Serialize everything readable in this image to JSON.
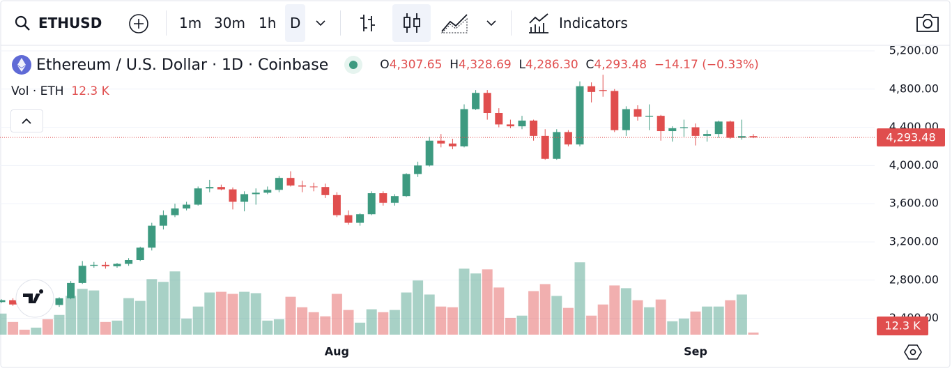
{
  "toolbar": {
    "symbol": "ETHUSD",
    "intervals": [
      "1m",
      "30m",
      "1h",
      "D"
    ],
    "indicators": "Indicators"
  },
  "legend": {
    "title": "Ethereum / U.S. Dollar · 1D · Coinbase",
    "ohlc": [
      {
        "label": "O",
        "value": "4,307.65"
      },
      {
        "label": "H",
        "value": "4,328.69"
      },
      {
        "label": "L",
        "value": "4,286.30"
      },
      {
        "label": "C",
        "value": "4,293.48"
      }
    ],
    "change": "−14.17 (−0.33%)",
    "volume_title": "Vol · ETH"
  },
  "chart_data": {
    "type": "candlestick",
    "categories": [
      null,
      null,
      null,
      null,
      null,
      null,
      null,
      null,
      null,
      null,
      null,
      null,
      null,
      null,
      null,
      null,
      null,
      null,
      null,
      null,
      null,
      null,
      null,
      null,
      null,
      null,
      null,
      null,
      null,
      "Aug",
      null,
      null,
      null,
      null,
      null,
      null,
      null,
      null,
      null,
      null,
      null,
      null,
      null,
      null,
      null,
      null,
      null,
      null,
      null,
      null,
      null,
      null,
      null,
      null,
      null,
      null,
      null,
      null,
      null,
      null,
      "Sep",
      null,
      null,
      null,
      null,
      null
    ],
    "open": [
      2570,
      2590,
      2545,
      2520,
      2550,
      2540,
      2610,
      2770,
      2950,
      2960,
      2945,
      2970,
      3010,
      3140,
      3370,
      3480,
      3550,
      3590,
      3760,
      3775,
      3750,
      3620,
      3700,
      3715,
      3745,
      3870,
      3790,
      3780,
      3775,
      3690,
      3480,
      3400,
      3490,
      3710,
      3610,
      3680,
      3910,
      4000,
      4260,
      4230,
      4200,
      4590,
      4760,
      4550,
      4430,
      4410,
      4470,
      4310,
      4070,
      4350,
      4220,
      4830,
      4790,
      4780,
      4370,
      4590,
      4510,
      4520,
      4360,
      4390,
      4400,
      4310,
      4330,
      4460,
      4290,
      4307.65
    ],
    "high": [
      2600,
      2610,
      2570,
      2560,
      2580,
      2620,
      2790,
      3000,
      2990,
      2990,
      2980,
      3030,
      3150,
      3400,
      3530,
      3600,
      3620,
      3780,
      3850,
      3800,
      3770,
      3730,
      3760,
      3780,
      3890,
      3940,
      3840,
      3820,
      3810,
      3720,
      3530,
      3500,
      3730,
      3730,
      3700,
      3920,
      4040,
      4300,
      4330,
      4280,
      4640,
      4790,
      4790,
      4600,
      4480,
      4520,
      4480,
      4380,
      4380,
      4370,
      4880,
      4870,
      4950,
      4800,
      4620,
      4630,
      4640,
      4530,
      4410,
      4480,
      4440,
      4370,
      4470,
      4470,
      4480,
      4328.69
    ],
    "low": [
      2560,
      2530,
      2500,
      2500,
      2520,
      2520,
      2600,
      2760,
      2930,
      2920,
      2930,
      2950,
      3000,
      3110,
      3330,
      3460,
      3530,
      3580,
      3720,
      3740,
      3540,
      3520,
      3590,
      3700,
      3720,
      3780,
      3720,
      3730,
      3660,
      3460,
      3380,
      3370,
      3480,
      3580,
      3580,
      3670,
      3880,
      3990,
      4190,
      4170,
      4190,
      4580,
      4480,
      4400,
      4390,
      4380,
      4260,
      4060,
      4060,
      4200,
      4200,
      4660,
      4720,
      4350,
      4310,
      4470,
      4370,
      4260,
      4250,
      4300,
      4210,
      4250,
      4290,
      4280,
      4270,
      4286.3
    ],
    "close": [
      2590,
      2545,
      2520,
      2550,
      2540,
      2610,
      2770,
      2950,
      2960,
      2945,
      2970,
      3010,
      3140,
      3370,
      3480,
      3550,
      3590,
      3760,
      3775,
      3750,
      3620,
      3700,
      3715,
      3745,
      3870,
      3790,
      3780,
      3775,
      3690,
      3480,
      3400,
      3490,
      3710,
      3610,
      3680,
      3910,
      4000,
      4260,
      4230,
      4200,
      4590,
      4760,
      4550,
      4430,
      4410,
      4470,
      4310,
      4070,
      4350,
      4220,
      4830,
      4770,
      4780,
      4370,
      4590,
      4510,
      4520,
      4360,
      4390,
      4400,
      4310,
      4330,
      4460,
      4290,
      4307.65,
      4293.48
    ],
    "volume": [
      123,
      74,
      29,
      41,
      90,
      115,
      226,
      267,
      258,
      74,
      82,
      213,
      197,
      324,
      308,
      369,
      94,
      164,
      246,
      250,
      238,
      250,
      242,
      82,
      90,
      221,
      160,
      131,
      107,
      238,
      144,
      70,
      148,
      131,
      144,
      246,
      316,
      234,
      164,
      160,
      385,
      357,
      381,
      275,
      98,
      111,
      254,
      295,
      226,
      156,
      422,
      111,
      176,
      287,
      271,
      201,
      160,
      205,
      78,
      94,
      135,
      164,
      164,
      201,
      234,
      12.3
    ],
    "last_price_label": "4,293.48",
    "last_volume_label": "12.3 K",
    "up_color": "#3d9a80",
    "down_color": "#e04e4e",
    "ylim": [
      2229,
      5258
    ],
    "yticks": [
      {
        "value": 2400,
        "label": "2,400.00"
      },
      {
        "value": 2800,
        "label": "2,800.00"
      },
      {
        "value": 3200,
        "label": "3,200.00"
      },
      {
        "value": 3600,
        "label": "3,600.00"
      },
      {
        "value": 4000,
        "label": "4,000.00"
      },
      {
        "value": 4400,
        "label": "4,400.00"
      },
      {
        "value": 4800,
        "label": "4,800.00"
      },
      {
        "value": 5200,
        "label": "5,200.00"
      }
    ],
    "grid": true
  }
}
